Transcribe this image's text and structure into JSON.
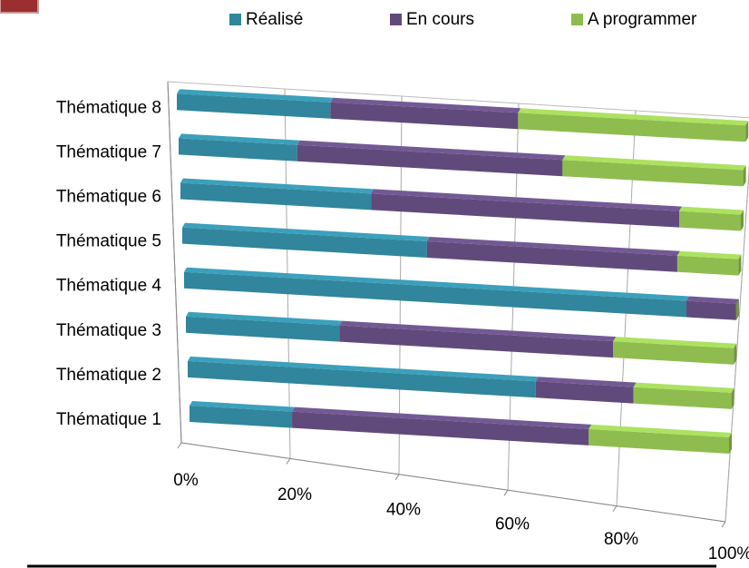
{
  "chart_data": {
    "type": "bar3d_stacked_horizontal",
    "categories": [
      "Thématique 1",
      "Thématique 2",
      "Thématique 3",
      "Thématique 4",
      "Thématique 5",
      "Thématique 6",
      "Thématique 7",
      "Thématique 8"
    ],
    "series": [
      {
        "name": "Réalisé",
        "color": "#31859c",
        "values": [
          19,
          64,
          28,
          91,
          44,
          34,
          21,
          27
        ]
      },
      {
        "name": "En cours",
        "color": "#604a7b",
        "values": [
          55,
          18,
          50,
          9,
          45,
          55,
          47,
          33
        ]
      },
      {
        "name": "A programmer",
        "color": "#8fbc4f",
        "values": [
          26,
          18,
          22,
          0,
          11,
          11,
          32,
          40
        ]
      }
    ],
    "xlim": [
      0,
      100
    ],
    "xticks": [
      {
        "value": 0,
        "label": "0%"
      },
      {
        "value": 20,
        "label": "20%"
      },
      {
        "value": 40,
        "label": "40%"
      },
      {
        "value": 60,
        "label": "60%"
      },
      {
        "value": 80,
        "label": "80%"
      },
      {
        "value": 100,
        "label": "100%"
      }
    ],
    "grid": true,
    "legend": "top"
  }
}
